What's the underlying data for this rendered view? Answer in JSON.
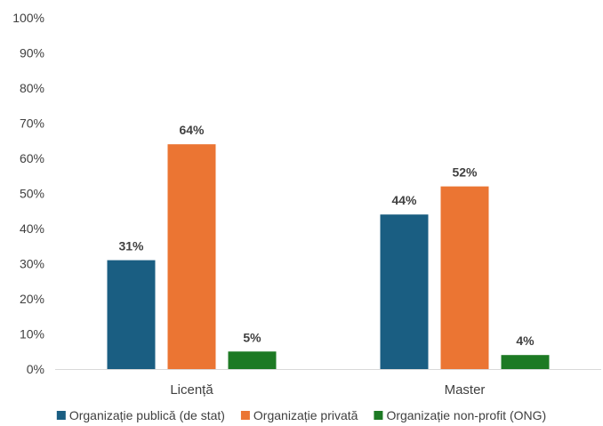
{
  "chart_data": {
    "type": "bar",
    "categories": [
      "Licență",
      "Master"
    ],
    "series": [
      {
        "name": "Organizație publică (de stat)",
        "color": "#1a5e82",
        "values": [
          31,
          44
        ],
        "labels": [
          "31%",
          "44%"
        ]
      },
      {
        "name": "Organizație privată",
        "color": "#eb7533",
        "values": [
          64,
          52
        ],
        "labels": [
          "64%",
          "52%"
        ]
      },
      {
        "name": "Organizație non-profit (ONG)",
        "color": "#1d7a24",
        "values": [
          5,
          4
        ],
        "labels": [
          "5%",
          "4%"
        ]
      }
    ],
    "ylim": [
      0,
      100
    ],
    "yticks": [
      0,
      10,
      20,
      30,
      40,
      50,
      60,
      70,
      80,
      90,
      100
    ],
    "ytick_labels": [
      "0%",
      "10%",
      "20%",
      "30%",
      "40%",
      "50%",
      "60%",
      "70%",
      "80%",
      "90%",
      "100%"
    ],
    "grid": false,
    "legend_position": "bottom"
  }
}
